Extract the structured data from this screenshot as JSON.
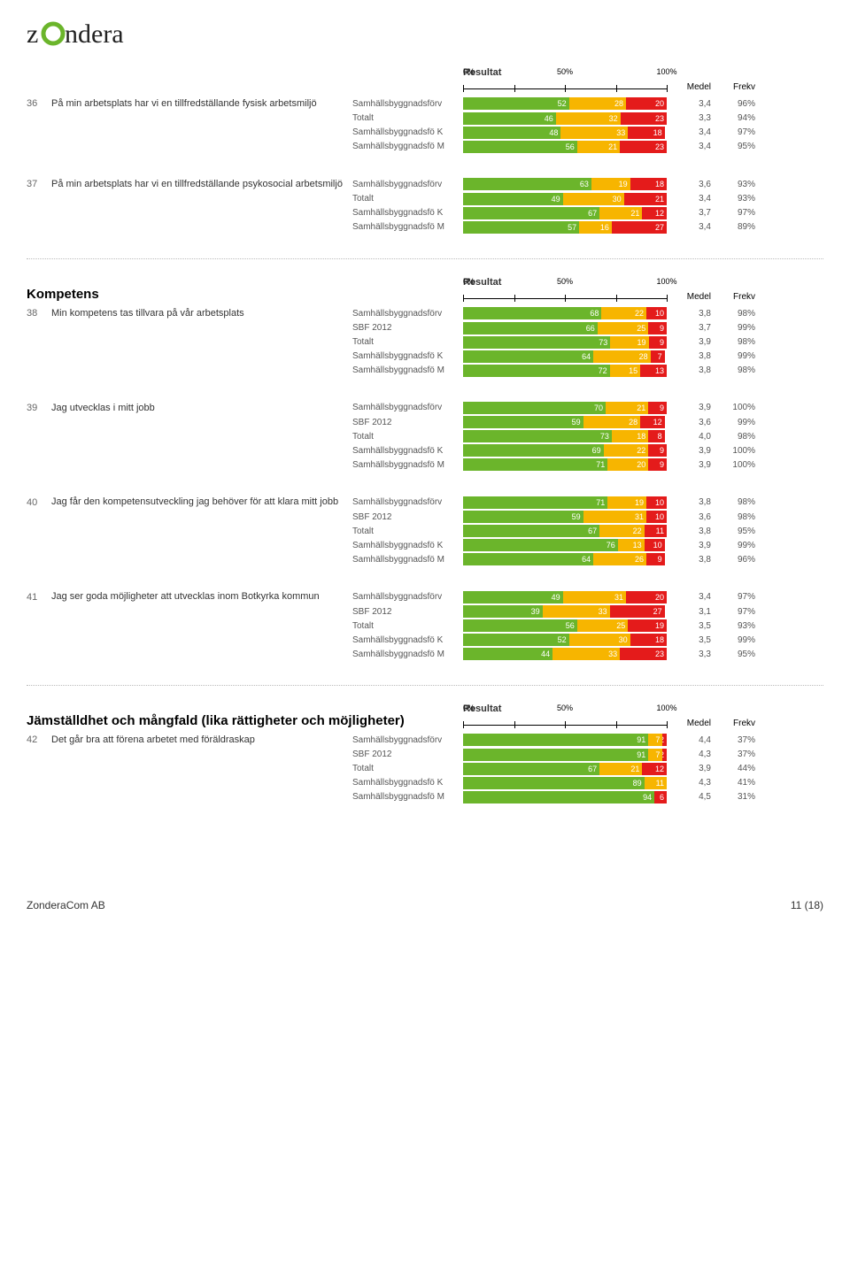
{
  "colors": {
    "green": "#6bb52b",
    "yellow": "#f7b500",
    "red": "#e41b1b",
    "text": "#333333",
    "muted": "#666666"
  },
  "axis": {
    "title": "Resultat",
    "ticks": [
      "0%",
      "50%",
      "100%"
    ],
    "head_medel": "Medel",
    "head_frekv": "Frekv"
  },
  "logo_text": "zondera",
  "footer": {
    "left": "ZonderaCom AB",
    "right": "11 (18)"
  },
  "blocks": [
    {
      "type": "axis_header"
    },
    {
      "type": "question",
      "num": "36",
      "text": "På min arbetsplats har vi en tillfredställande fysisk arbetsmiljö",
      "rows": [
        {
          "label": "Samhällsbyggnadsförv",
          "g": 52,
          "y": 28,
          "r": 20,
          "medel": "3,4",
          "frekv": "96%"
        },
        {
          "label": "Totalt",
          "g": 46,
          "y": 32,
          "r": 23,
          "medel": "3,3",
          "frekv": "94%"
        },
        {
          "label": "Samhällsbyggnadsfö K",
          "g": 48,
          "y": 33,
          "r": 18,
          "medel": "3,4",
          "frekv": "97%"
        },
        {
          "label": "Samhällsbyggnadsfö M",
          "g": 56,
          "y": 21,
          "r": 23,
          "medel": "3,4",
          "frekv": "95%"
        }
      ]
    },
    {
      "type": "question",
      "num": "37",
      "text": "På min arbetsplats har vi en tillfredställande psykosocial arbetsmiljö",
      "rows": [
        {
          "label": "Samhällsbyggnadsförv",
          "g": 63,
          "y": 19,
          "r": 18,
          "medel": "3,6",
          "frekv": "93%"
        },
        {
          "label": "Totalt",
          "g": 49,
          "y": 30,
          "r": 21,
          "medel": "3,4",
          "frekv": "93%"
        },
        {
          "label": "Samhällsbyggnadsfö K",
          "g": 67,
          "y": 21,
          "r": 12,
          "medel": "3,7",
          "frekv": "97%"
        },
        {
          "label": "Samhällsbyggnadsfö M",
          "g": 57,
          "y": 16,
          "r": 27,
          "medel": "3,4",
          "frekv": "89%"
        }
      ]
    },
    {
      "type": "separator"
    },
    {
      "type": "section_header",
      "title": "Kompetens"
    },
    {
      "type": "question",
      "num": "38",
      "text": "Min kompetens tas tillvara på vår arbetsplats",
      "rows": [
        {
          "label": "Samhällsbyggnadsförv",
          "g": 68,
          "y": 22,
          "r": 10,
          "medel": "3,8",
          "frekv": "98%"
        },
        {
          "label": "SBF 2012",
          "g": 66,
          "y": 25,
          "r": 9,
          "medel": "3,7",
          "frekv": "99%"
        },
        {
          "label": "Totalt",
          "g": 73,
          "y": 19,
          "r": 9,
          "medel": "3,9",
          "frekv": "98%"
        },
        {
          "label": "Samhällsbyggnadsfö K",
          "g": 64,
          "y": 28,
          "r": 7,
          "medel": "3,8",
          "frekv": "99%"
        },
        {
          "label": "Samhällsbyggnadsfö M",
          "g": 72,
          "y": 15,
          "r": 13,
          "medel": "3,8",
          "frekv": "98%"
        }
      ]
    },
    {
      "type": "question",
      "num": "39",
      "text": "Jag utvecklas i mitt jobb",
      "rows": [
        {
          "label": "Samhällsbyggnadsförv",
          "g": 70,
          "y": 21,
          "r": 9,
          "medel": "3,9",
          "frekv": "100%"
        },
        {
          "label": "SBF 2012",
          "g": 59,
          "y": 28,
          "r": 12,
          "medel": "3,6",
          "frekv": "99%"
        },
        {
          "label": "Totalt",
          "g": 73,
          "y": 18,
          "r": 8,
          "medel": "4,0",
          "frekv": "98%"
        },
        {
          "label": "Samhällsbyggnadsfö K",
          "g": 69,
          "y": 22,
          "r": 9,
          "medel": "3,9",
          "frekv": "100%"
        },
        {
          "label": "Samhällsbyggnadsfö M",
          "g": 71,
          "y": 20,
          "r": 9,
          "medel": "3,9",
          "frekv": "100%"
        }
      ]
    },
    {
      "type": "question",
      "num": "40",
      "text": "Jag får den kompetensutveckling jag behöver för att klara mitt jobb",
      "rows": [
        {
          "label": "Samhällsbyggnadsförv",
          "g": 71,
          "y": 19,
          "r": 10,
          "medel": "3,8",
          "frekv": "98%"
        },
        {
          "label": "SBF 2012",
          "g": 59,
          "y": 31,
          "r": 10,
          "medel": "3,6",
          "frekv": "98%"
        },
        {
          "label": "Totalt",
          "g": 67,
          "y": 22,
          "r": 11,
          "medel": "3,8",
          "frekv": "95%"
        },
        {
          "label": "Samhällsbyggnadsfö K",
          "g": 76,
          "y": 13,
          "r": 10,
          "medel": "3,9",
          "frekv": "99%"
        },
        {
          "label": "Samhällsbyggnadsfö M",
          "g": 64,
          "y": 26,
          "r": 9,
          "medel": "3,8",
          "frekv": "96%"
        }
      ]
    },
    {
      "type": "question",
      "num": "41",
      "text": "Jag ser goda möjligheter att utvecklas inom Botkyrka kommun",
      "rows": [
        {
          "label": "Samhällsbyggnadsförv",
          "g": 49,
          "y": 31,
          "r": 20,
          "medel": "3,4",
          "frekv": "97%"
        },
        {
          "label": "SBF 2012",
          "g": 39,
          "y": 33,
          "r": 27,
          "medel": "3,1",
          "frekv": "97%"
        },
        {
          "label": "Totalt",
          "g": 56,
          "y": 25,
          "r": 19,
          "medel": "3,5",
          "frekv": "93%"
        },
        {
          "label": "Samhällsbyggnadsfö K",
          "g": 52,
          "y": 30,
          "r": 18,
          "medel": "3,5",
          "frekv": "99%"
        },
        {
          "label": "Samhällsbyggnadsfö M",
          "g": 44,
          "y": 33,
          "r": 23,
          "medel": "3,3",
          "frekv": "95%"
        }
      ]
    },
    {
      "type": "separator"
    },
    {
      "type": "section_header",
      "title": "Jämställdhet och mångfald (lika rättigheter och möjligheter)"
    },
    {
      "type": "question",
      "num": "42",
      "text": "Det går bra att förena arbetet med föräldraskap",
      "rows": [
        {
          "label": "Samhällsbyggnadsförv",
          "g": 91,
          "y": 7,
          "r": 2,
          "medel": "4,4",
          "frekv": "37%"
        },
        {
          "label": "SBF 2012",
          "g": 91,
          "y": 7,
          "r": 2,
          "medel": "4,3",
          "frekv": "37%"
        },
        {
          "label": "Totalt",
          "g": 67,
          "y": 21,
          "r": 12,
          "medel": "3,9",
          "frekv": "44%"
        },
        {
          "label": "Samhällsbyggnadsfö K",
          "g": 89,
          "y": 11,
          "r": 0,
          "medel": "4,3",
          "frekv": "41%"
        },
        {
          "label": "Samhällsbyggnadsfö M",
          "g": 94,
          "y": 0,
          "r": 6,
          "medel": "4,5",
          "frekv": "31%"
        }
      ]
    }
  ]
}
